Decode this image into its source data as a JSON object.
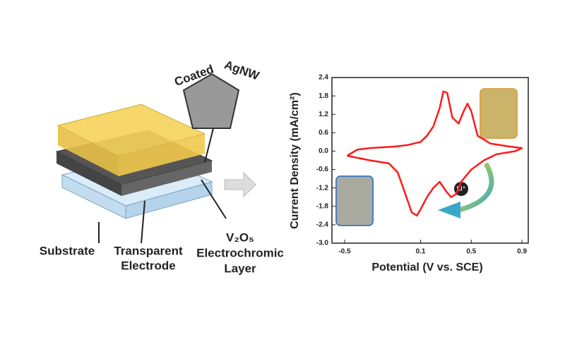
{
  "schematic": {
    "sem_labels": [
      "Coated",
      "AgNW"
    ],
    "substrate": "Substrate",
    "electrode": [
      "Transparent",
      "Electrode"
    ],
    "layer": [
      "V₂O₅",
      "Electrochromic",
      "Layer"
    ]
  },
  "chart_data": {
    "type": "line",
    "x_label": "Potential (V vs. SCE)",
    "y_label": "Current Density (mA/cm²)",
    "annotations": [
      "Li⁺"
    ],
    "xlim": [
      -0.6,
      0.95
    ],
    "ylim": [
      -3.0,
      2.4
    ],
    "xticks": [
      -0.5,
      0.1,
      0.5,
      0.9
    ],
    "yticks": [
      2.4,
      1.8,
      1.2,
      0.6,
      {
        "value": 0,
        "label": "0.0"
      },
      -0.6,
      -1.2,
      -1.8,
      -2.4,
      {
        "value": -3,
        "label": "-3.0"
      }
    ],
    "series": [
      {
        "color": "#ff1a1a",
        "x": [
          -0.48,
          -0.4,
          -0.3,
          -0.1,
          0.0,
          0.1,
          0.15,
          0.2,
          0.25,
          0.28,
          0.31,
          0.35,
          0.4,
          0.44,
          0.47,
          0.5,
          0.55,
          0.65,
          0.8,
          0.9,
          0.85,
          0.7,
          0.6,
          0.5,
          0.42,
          0.38,
          0.34,
          0.3,
          0.25,
          0.2,
          0.15,
          0.1,
          0.07,
          0.03,
          -0.02,
          -0.08,
          -0.15,
          -0.3,
          -0.48
        ],
        "values": [
          -0.15,
          0.05,
          0.1,
          0.15,
          0.2,
          0.3,
          0.5,
          0.8,
          1.4,
          1.95,
          1.9,
          1.1,
          0.9,
          1.3,
          1.55,
          1.3,
          0.5,
          0.25,
          0.15,
          0.1,
          0.0,
          -0.1,
          -0.3,
          -0.6,
          -1.0,
          -1.4,
          -1.5,
          -1.3,
          -1.0,
          -1.2,
          -1.5,
          -1.9,
          -2.1,
          -2.0,
          -1.4,
          -0.7,
          -0.4,
          -0.3,
          -0.15
        ]
      }
    ]
  }
}
